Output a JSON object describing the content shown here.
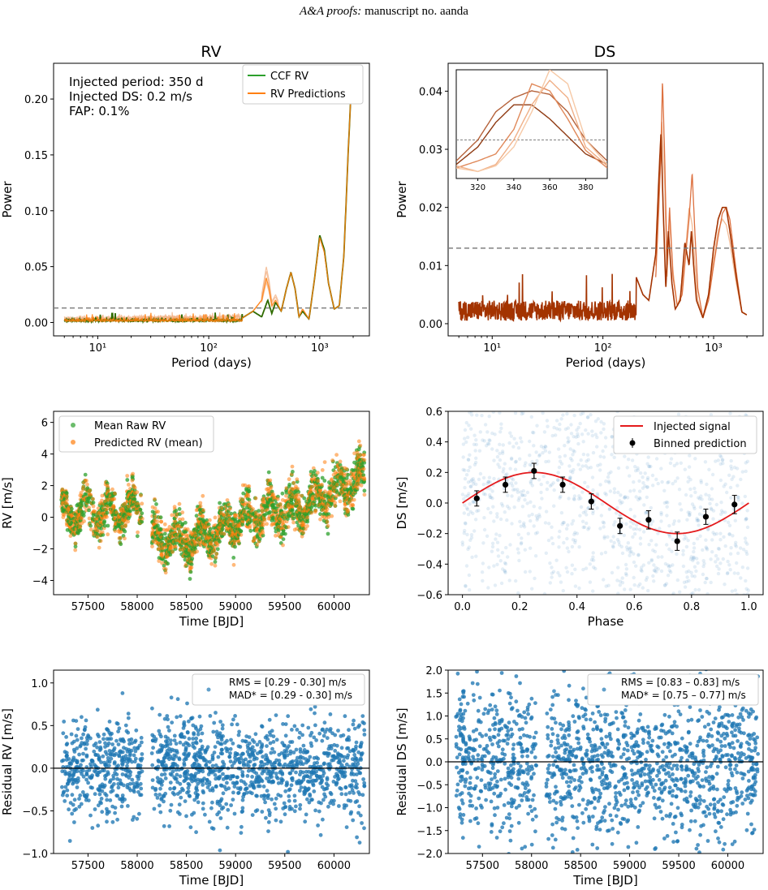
{
  "header": {
    "journal": "A&A proofs:",
    "manuscript": "manuscript no. aanda"
  },
  "colors": {
    "ccf": "#2ca02c",
    "pred": "#ff7f0e",
    "dark_green": "#2f6b00",
    "ds_dark": "#a33300",
    "ds_mid": "#d9622b",
    "ds_light": "#f2b48a",
    "scatter_blue": "#1f77b4",
    "red": "#e41a1c",
    "fap_line": "#808080"
  },
  "chart_data": [
    {
      "id": "rv_periodogram",
      "type": "line",
      "title": "RV",
      "xlabel": "Period (days)",
      "ylabel": "Power",
      "xscale": "log",
      "xlim": [
        4,
        2800
      ],
      "ylim": [
        -0.012,
        0.232
      ],
      "yticks": [
        0.0,
        0.05,
        0.1,
        0.15,
        0.2
      ],
      "ytick_labels": [
        "0.00",
        "0.05",
        "0.10",
        "0.15",
        "0.20"
      ],
      "xticks": [
        10,
        100,
        1000
      ],
      "xtick_labels": [
        "10¹",
        "10²",
        "10³"
      ],
      "fap_level": 0.013,
      "annotations": [
        "Injected period: 350 d",
        "Injected DS: 0.2 m/s",
        "FAP: 0.1%"
      ],
      "legend": {
        "position": "top-right",
        "entries": [
          "CCF RV",
          "RV Predictions"
        ]
      },
      "series": [
        {
          "name": "CCF RV",
          "x": [
            5,
            200,
            250,
            300,
            340,
            370,
            400,
            450,
            500,
            550,
            600,
            650,
            700,
            800,
            900,
            1000,
            1100,
            1200,
            1350,
            1500,
            1650,
            1800,
            1950
          ],
          "y": [
            0.002,
            0.004,
            0.01,
            0.005,
            0.02,
            0.008,
            0.018,
            0.01,
            0.03,
            0.045,
            0.03,
            0.005,
            0.01,
            0.003,
            0.04,
            0.078,
            0.065,
            0.035,
            0.012,
            0.015,
            0.06,
            0.15,
            0.225
          ]
        },
        {
          "name": "RV Predictions",
          "x": [
            5,
            200,
            250,
            300,
            330,
            350,
            370,
            400,
            450,
            500,
            550,
            600,
            650,
            700,
            800,
            900,
            1000,
            1100,
            1200,
            1350,
            1500,
            1650,
            1800,
            1950
          ],
          "y": [
            0.002,
            0.004,
            0.01,
            0.02,
            0.04,
            0.03,
            0.015,
            0.02,
            0.01,
            0.03,
            0.045,
            0.03,
            0.005,
            0.012,
            0.003,
            0.04,
            0.076,
            0.063,
            0.035,
            0.012,
            0.015,
            0.06,
            0.15,
            0.225
          ]
        }
      ]
    },
    {
      "id": "ds_periodogram",
      "type": "line",
      "title": "DS",
      "xlabel": "Period (days)",
      "ylabel": "Power",
      "xscale": "log",
      "xlim": [
        4,
        2800
      ],
      "ylim": [
        -0.0021,
        0.0448
      ],
      "yticks": [
        0.0,
        0.01,
        0.02,
        0.03,
        0.04
      ],
      "ytick_labels": [
        "0.00",
        "0.01",
        "0.02",
        "0.03",
        "0.04"
      ],
      "xticks": [
        10,
        100,
        1000
      ],
      "xtick_labels": [
        "10¹",
        "10²",
        "10³"
      ],
      "fap_level": 0.013,
      "series": [
        {
          "x": [
            5,
            8,
            9,
            10,
            15,
            20,
            40,
            60,
            100,
            150,
            190,
            200,
            230,
            260,
            300,
            320,
            335,
            350,
            370,
            390,
            420,
            450,
            500,
            550,
            600,
            630,
            660,
            700,
            800,
            900,
            1000,
            1100,
            1200,
            1300,
            1400,
            1600,
            1800,
            2000
          ],
          "y": [
            0.003,
            0.003,
            0.008,
            0.004,
            0.003,
            0.004,
            0.003,
            0.004,
            0.003,
            0.003,
            0.004,
            0.008,
            0.005,
            0.004,
            0.012,
            0.025,
            0.033,
            0.02,
            0.006,
            0.016,
            0.007,
            0.0025,
            0.004,
            0.014,
            0.01,
            0.016,
            0.01,
            0.004,
            0.001,
            0.005,
            0.013,
            0.018,
            0.02,
            0.02,
            0.016,
            0.008,
            0.002,
            0.0015
          ]
        },
        {
          "x": [
            300,
            320,
            335,
            345,
            360,
            380,
            400,
            430,
            470,
            520,
            560,
            600,
            640,
            680,
            720,
            800,
            900,
            1000,
            1100,
            1200,
            1300,
            1400,
            1600,
            1800,
            2000
          ],
          "y": [
            0.008,
            0.02,
            0.03,
            0.042,
            0.03,
            0.01,
            0.02,
            0.008,
            0.003,
            0.005,
            0.012,
            0.018,
            0.026,
            0.015,
            0.006,
            0.001,
            0.004,
            0.01,
            0.015,
            0.019,
            0.02,
            0.018,
            0.009,
            0.002,
            0.0015
          ]
        },
        {
          "x": [
            300,
            320,
            340,
            360,
            380,
            400,
            430,
            470,
            520,
            560,
            600,
            640,
            680,
            720,
            800,
            900,
            1000,
            1100,
            1200,
            1300,
            1400,
            1600,
            1800,
            2000
          ],
          "y": [
            0.01,
            0.022,
            0.035,
            0.025,
            0.008,
            0.018,
            0.009,
            0.003,
            0.006,
            0.013,
            0.02,
            0.017,
            0.01,
            0.004,
            0.001,
            0.005,
            0.011,
            0.016,
            0.018,
            0.017,
            0.014,
            0.007,
            0.002,
            0.0015
          ]
        }
      ],
      "inset": {
        "xlim": [
          308,
          392
        ],
        "ylim": [
          0.024,
          0.0395
        ],
        "xticks": [
          320,
          340,
          360,
          380
        ],
        "xtick_labels": [
          "320",
          "340",
          "360",
          "380"
        ],
        "fap_level": 0.0295,
        "series": [
          {
            "x": [
              308,
              320,
              330,
              340,
              350,
              360,
              370,
              380,
              392
            ],
            "y": [
              0.0265,
              0.0295,
              0.0335,
              0.0355,
              0.0365,
              0.036,
              0.0335,
              0.0295,
              0.0265
            ]
          },
          {
            "x": [
              308,
              320,
              330,
              340,
              350,
              360,
              370,
              380,
              392
            ],
            "y": [
              0.026,
              0.0285,
              0.032,
              0.0345,
              0.0345,
              0.0325,
              0.03,
              0.0275,
              0.026
            ]
          },
          {
            "x": [
              308,
              320,
              330,
              340,
              350,
              360,
              370,
              380,
              392
            ],
            "y": [
              0.0255,
              0.0265,
              0.0275,
              0.031,
              0.0375,
              0.0365,
              0.0325,
              0.028,
              0.0255
            ]
          },
          {
            "x": [
              308,
              320,
              330,
              340,
              350,
              360,
              370,
              380,
              392
            ],
            "y": [
              0.0258,
              0.025,
              0.026,
              0.0295,
              0.0345,
              0.038,
              0.0355,
              0.0285,
              0.0258
            ]
          },
          {
            "x": [
              308,
              320,
              330,
              340,
              350,
              360,
              370,
              380,
              392
            ],
            "y": [
              0.0255,
              0.025,
              0.0258,
              0.0285,
              0.0335,
              0.0395,
              0.0375,
              0.0295,
              0.026
            ]
          }
        ]
      }
    },
    {
      "id": "rv_timeseries",
      "type": "scatter",
      "xlabel": "Time [BJD]",
      "ylabel": "RV [m/s]",
      "xlim": [
        57150,
        60360
      ],
      "ylim": [
        -4.9,
        6.7
      ],
      "xticks": [
        57500,
        58000,
        58500,
        59000,
        59500,
        60000
      ],
      "yticks": [
        -4,
        -2,
        0,
        2,
        4,
        6
      ],
      "ytick_labels": [
        "−4",
        "−2",
        "0",
        "2",
        "4",
        "6"
      ],
      "legend": {
        "position": "top-left",
        "entries": [
          "Mean Raw RV",
          "Predicted RV (mean)"
        ]
      },
      "trend": {
        "x": [
          57230,
          57500,
          57800,
          58050,
          58150,
          58500,
          58800,
          59000,
          59300,
          59600,
          59900,
          60100,
          60300
        ],
        "y": [
          0.2,
          0.3,
          0.4,
          0.6,
          -1.2,
          -1.6,
          -1.0,
          -0.2,
          0.2,
          0.5,
          1.3,
          2.0,
          2.4
        ]
      },
      "observation_gaps": [
        [
          58050,
          58150
        ]
      ]
    },
    {
      "id": "ds_phase",
      "type": "scatter",
      "xlabel": "Phase",
      "ylabel": "DS [m/s]",
      "xlim": [
        -0.05,
        1.05
      ],
      "ylim": [
        -0.6,
        0.6
      ],
      "xticks": [
        0.0,
        0.2,
        0.4,
        0.6,
        0.8,
        1.0
      ],
      "xtick_labels": [
        "0.0",
        "0.2",
        "0.4",
        "0.6",
        "0.8",
        "1.0"
      ],
      "yticks": [
        -0.6,
        -0.4,
        -0.2,
        0.0,
        0.2,
        0.4,
        0.6
      ],
      "ytick_labels": [
        "−0.6",
        "−0.4",
        "−0.2",
        "0.0",
        "0.2",
        "0.4",
        "0.6"
      ],
      "legend": {
        "position": "top-right",
        "entries": [
          "Injected signal",
          "Binned prediction"
        ]
      },
      "injected_amplitude": 0.2,
      "binned": {
        "phase": [
          0.05,
          0.15,
          0.25,
          0.35,
          0.45,
          0.55,
          0.65,
          0.75,
          0.85,
          0.95
        ],
        "value": [
          0.03,
          0.12,
          0.21,
          0.12,
          0.01,
          -0.15,
          -0.11,
          -0.25,
          -0.09,
          -0.01
        ],
        "error": [
          0.05,
          0.05,
          0.05,
          0.05,
          0.05,
          0.05,
          0.06,
          0.06,
          0.05,
          0.06
        ]
      }
    },
    {
      "id": "rv_residuals",
      "type": "scatter",
      "xlabel": "Time [BJD]",
      "ylabel": "Residual RV [m/s]",
      "xlim": [
        57150,
        60360
      ],
      "ylim": [
        -1.0,
        1.15
      ],
      "xticks": [
        57500,
        58000,
        58500,
        59000,
        59500,
        60000
      ],
      "yticks": [
        -1.0,
        -0.5,
        0.0,
        0.5,
        1.0
      ],
      "ytick_labels": [
        "−1.0",
        "−0.5",
        "0.0",
        "0.5",
        "1.0"
      ],
      "legend": {
        "position": "top-right",
        "entries": [
          "RMS = [0.29 - 0.30] m/s",
          "MAD* = [0.29 - 0.30] m/s"
        ]
      },
      "rms": [
        0.29,
        0.3
      ],
      "observation_gaps": [
        [
          58050,
          58150
        ]
      ]
    },
    {
      "id": "ds_residuals",
      "type": "scatter",
      "xlabel": "Time [BJD]",
      "ylabel": "Residual DS [m/s]",
      "xlim": [
        57150,
        60360
      ],
      "ylim": [
        -2.0,
        2.0
      ],
      "xticks": [
        57500,
        58000,
        58500,
        59000,
        59500,
        60000
      ],
      "yticks": [
        -2.0,
        -1.5,
        -1.0,
        -0.5,
        0.0,
        0.5,
        1.0,
        1.5,
        2.0
      ],
      "ytick_labels": [
        "−2.0",
        "−1.5",
        "−1.0",
        "−0.5",
        "0.0",
        "0.5",
        "1.0",
        "1.5",
        "2.0"
      ],
      "legend": {
        "position": "top-right",
        "entries": [
          "RMS = [0.83 – 0.83] m/s",
          "MAD* = [0.75 – 0.77] m/s"
        ]
      },
      "rms": [
        0.83,
        0.83
      ],
      "observation_gaps": [
        [
          58050,
          58150
        ]
      ]
    }
  ]
}
